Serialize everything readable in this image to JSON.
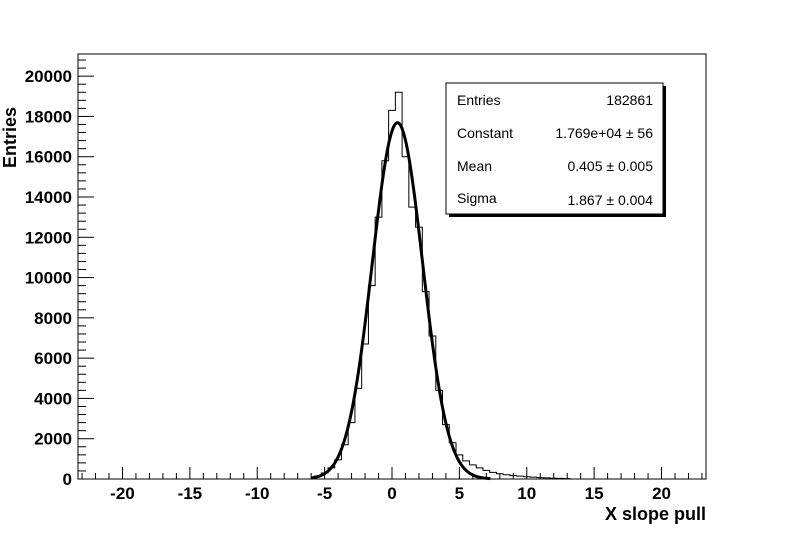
{
  "chart_data": {
    "type": "histogram",
    "xlabel": "X slope pull",
    "ylabel": "Entries",
    "xlim": [
      -23.3,
      23.3
    ],
    "ylim": [
      0,
      21100
    ],
    "x_ticks": [
      -20,
      -15,
      -10,
      -5,
      0,
      5,
      10,
      15,
      20
    ],
    "x_tick_labels": [
      "-20",
      "-15",
      "-10",
      "-5",
      "0",
      "5",
      "10",
      "15",
      "20"
    ],
    "y_ticks": [
      0,
      2000,
      4000,
      6000,
      8000,
      10000,
      12000,
      14000,
      16000,
      18000,
      20000
    ],
    "y_tick_labels": [
      "0",
      "2000",
      "4000",
      "6000",
      "8000",
      "10000",
      "12000",
      "14000",
      "16000",
      "18000",
      "20000"
    ],
    "histogram": {
      "bin_width": 0.5,
      "bins": [
        {
          "x": -5.5,
          "y": 150
        },
        {
          "x": -5.0,
          "y": 300
        },
        {
          "x": -4.5,
          "y": 550
        },
        {
          "x": -4.0,
          "y": 950
        },
        {
          "x": -3.5,
          "y": 1700
        },
        {
          "x": -3.0,
          "y": 2800
        },
        {
          "x": -2.5,
          "y": 4500
        },
        {
          "x": -2.0,
          "y": 6700
        },
        {
          "x": -1.5,
          "y": 9600
        },
        {
          "x": -1.0,
          "y": 13000
        },
        {
          "x": -0.5,
          "y": 15800
        },
        {
          "x": 0.0,
          "y": 18300
        },
        {
          "x": 0.5,
          "y": 19200
        },
        {
          "x": 1.0,
          "y": 16000
        },
        {
          "x": 1.5,
          "y": 13500
        },
        {
          "x": 2.0,
          "y": 12500
        },
        {
          "x": 2.5,
          "y": 9300
        },
        {
          "x": 3.0,
          "y": 7100
        },
        {
          "x": 3.5,
          "y": 4400
        },
        {
          "x": 4.0,
          "y": 2700
        },
        {
          "x": 4.5,
          "y": 1800
        },
        {
          "x": 5.0,
          "y": 1200
        },
        {
          "x": 5.5,
          "y": 900
        },
        {
          "x": 6.0,
          "y": 700
        },
        {
          "x": 6.5,
          "y": 550
        },
        {
          "x": 7.0,
          "y": 430
        },
        {
          "x": 7.5,
          "y": 330
        },
        {
          "x": 8.0,
          "y": 260
        },
        {
          "x": 8.5,
          "y": 210
        },
        {
          "x": 9.0,
          "y": 170
        },
        {
          "x": 9.5,
          "y": 140
        },
        {
          "x": 10.0,
          "y": 110
        },
        {
          "x": 10.5,
          "y": 90
        },
        {
          "x": 11.0,
          "y": 70
        },
        {
          "x": 11.5,
          "y": 55
        },
        {
          "x": 12.0,
          "y": 40
        },
        {
          "x": 12.5,
          "y": 30
        },
        {
          "x": 13.0,
          "y": 20
        }
      ]
    },
    "fit": {
      "function": "gaus",
      "constant": 17690,
      "mean": 0.405,
      "sigma": 1.867,
      "range": [
        -6,
        7.3
      ]
    },
    "stats_box": {
      "rows": [
        {
          "label": "Entries",
          "value": "182861"
        },
        {
          "label": "Constant",
          "value": "1.769e+04 ± 56"
        },
        {
          "label": "Mean",
          "value": "0.405 ± 0.005"
        },
        {
          "label": "Sigma",
          "value": "1.867 ± 0.004"
        }
      ]
    },
    "grid": false,
    "colors": {
      "histogram": "#000000",
      "fit": "#000000",
      "frame": "#000000"
    }
  }
}
